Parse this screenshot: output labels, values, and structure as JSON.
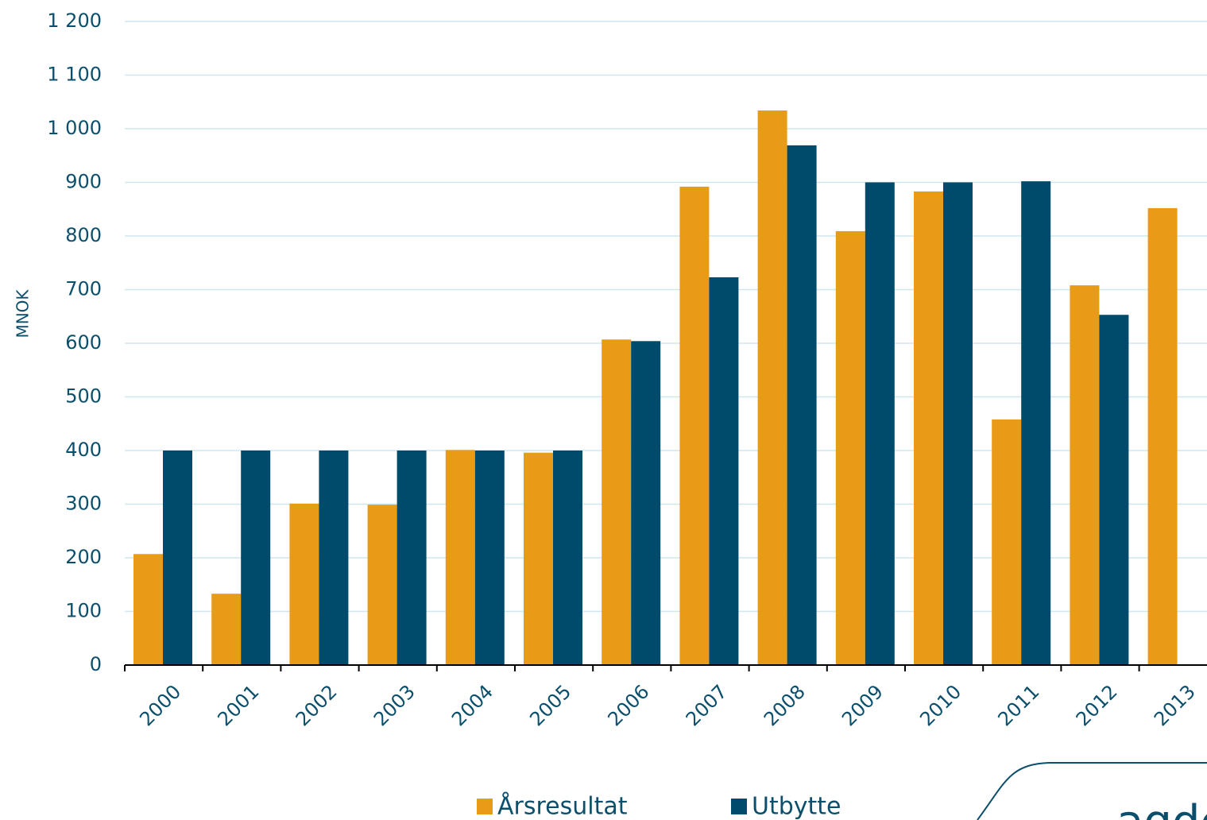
{
  "chart_data": {
    "type": "bar",
    "y_label": "MNOK",
    "categories": [
      "2000",
      "2001",
      "2002",
      "2003",
      "2004",
      "2005",
      "2006",
      "2007",
      "2008",
      "2009",
      "2010",
      "2011",
      "2012",
      "2013"
    ],
    "series": [
      {
        "name": "Årsresultat",
        "color": "#e89b17",
        "values": [
          207,
          133,
          301,
          299,
          401,
          396,
          607,
          892,
          1034,
          809,
          883,
          458,
          708,
          852
        ]
      },
      {
        "name": "Utbytte",
        "color": "#004b6b",
        "values": [
          400,
          400,
          400,
          400,
          400,
          400,
          604,
          723,
          969,
          900,
          900,
          902,
          653,
          null
        ]
      }
    ],
    "ylim": [
      0,
      1200
    ],
    "yticks": [
      0,
      100,
      200,
      300,
      400,
      500,
      600,
      700,
      800,
      900,
      {
        "value": 1000,
        "label": "1 000"
      },
      {
        "value": 1100,
        "label": "1 100"
      },
      {
        "value": 1200,
        "label": "1 200"
      }
    ],
    "grid": true,
    "legend": "bottom",
    "logo": "agder"
  }
}
